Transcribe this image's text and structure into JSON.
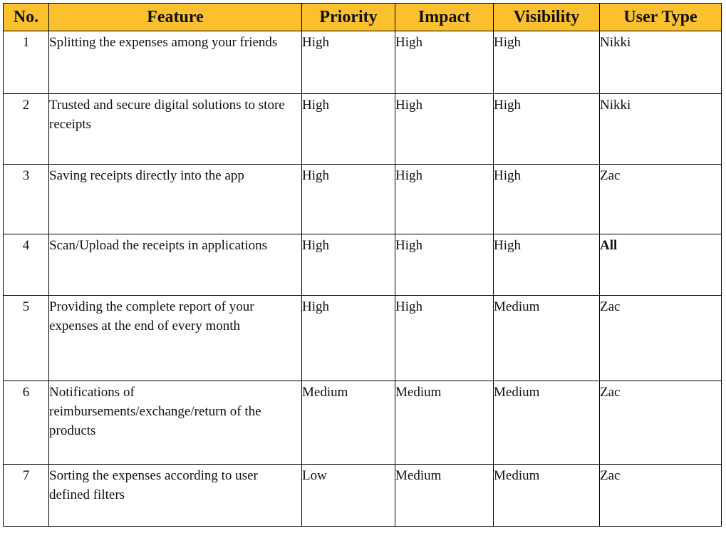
{
  "table": {
    "headers": [
      "No.",
      "Feature",
      "Priority",
      "Impact",
      "Visibility",
      "User Type"
    ],
    "header_bg": "#fbc02d",
    "rows": [
      {
        "no": "1",
        "feature": "Splitting the expenses among your friends",
        "priority": "High",
        "impact": "High",
        "visibility": "High",
        "user_type": "Nikki"
      },
      {
        "no": "2",
        "feature": "Trusted and secure digital solutions to store receipts",
        "priority": "High",
        "impact": "High",
        "visibility": "High",
        "user_type": "Nikki"
      },
      {
        "no": "3",
        "feature": "Saving receipts directly into the app",
        "priority": "High",
        "impact": "High",
        "visibility": "High",
        "user_type": "Zac"
      },
      {
        "no": "4",
        "feature": "Scan/Upload the receipts in applications",
        "priority": "High",
        "impact": "High",
        "visibility": "High",
        "user_type": "All"
      },
      {
        "no": "5",
        "feature": "Providing the complete report of your expenses at the end of every month",
        "priority": "High",
        "impact": "High",
        "visibility": "Medium",
        "user_type": "Zac"
      },
      {
        "no": "6",
        "feature": "Notifications of reimbursements/exchange/return of the products",
        "priority": "Medium",
        "impact": "Medium",
        "visibility": "Medium",
        "user_type": "Zac"
      },
      {
        "no": "7",
        "feature": "Sorting the expenses according to user defined filters",
        "priority": "Low",
        "impact": "Medium",
        "visibility": "Medium",
        "user_type": "Zac"
      }
    ]
  }
}
